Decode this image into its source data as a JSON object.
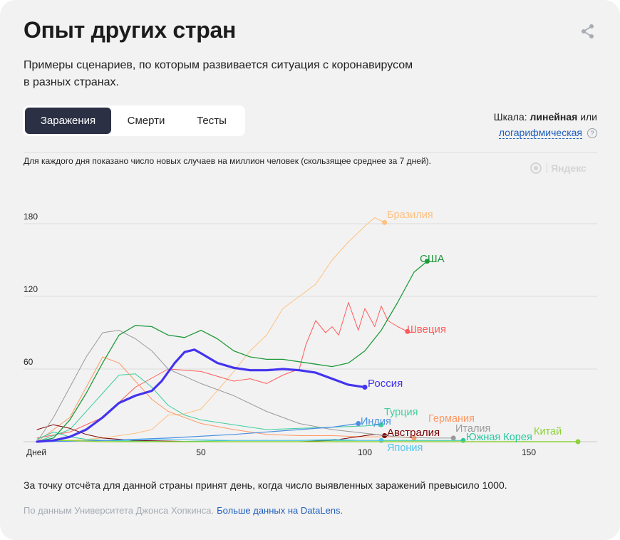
{
  "header": {
    "title": "Опыт других стран",
    "subtitle_line1": "Примеры сценариев, по которым развивается ситуация с коронавирусом",
    "subtitle_line2": "в разных странах."
  },
  "share_icon": "share-icon",
  "tabs": [
    {
      "label": "Заражения",
      "active": true
    },
    {
      "label": "Смерти",
      "active": false
    },
    {
      "label": "Тесты",
      "active": false
    }
  ],
  "scale": {
    "prefix": "Шкала:",
    "current": "линейная",
    "or": "или",
    "alt_link": "логарифмическая",
    "help": "?"
  },
  "note": "Для каждого дня показано число новых случаев на миллион человек (скользящее среднее за 7 дней).",
  "watermark": "Яндекс",
  "footnote": "За точку отсчёта для данной страны принят день, когда число выявленных заражений превысило 1000.",
  "source": {
    "text": "По данным Университета Джонса Хопкинса.",
    "link": "Больше данных на DataLens."
  },
  "colors": {
    "accent": "#2b3045",
    "link": "#1f5fbf",
    "russia": "#4433ee",
    "usa": "#1e9a3a",
    "brazil": "#ffc080",
    "sweden": "#ff5b5b",
    "india": "#4a90e2",
    "turkey": "#3ecf9c",
    "germany": "#ff9966",
    "australia": "#7a0000",
    "italy": "#9a9a9a",
    "south_korea": "#29c7a1",
    "china": "#8fd13a",
    "japan": "#56c5ee",
    "background": "#f2f2f2"
  },
  "chart_data": {
    "type": "line",
    "xlabel": "Дней",
    "ylabel": "",
    "xlim": [
      0,
      166
    ],
    "ylim": [
      0,
      190
    ],
    "xticks": [
      50,
      100,
      150
    ],
    "yticks": [
      60,
      120,
      180
    ],
    "grid": true,
    "legend": "inline-end-labels",
    "series": [
      {
        "name": "Бразилия",
        "color": "#ffc080",
        "width": 1,
        "points": [
          [
            0,
            0
          ],
          [
            10,
            1
          ],
          [
            20,
            3
          ],
          [
            30,
            7
          ],
          [
            35,
            10
          ],
          [
            40,
            22
          ],
          [
            45,
            23
          ],
          [
            50,
            27
          ],
          [
            55,
            42
          ],
          [
            60,
            58
          ],
          [
            65,
            75
          ],
          [
            70,
            88
          ],
          [
            75,
            110
          ],
          [
            80,
            120
          ],
          [
            85,
            130
          ],
          [
            90,
            150
          ],
          [
            95,
            165
          ],
          [
            100,
            178
          ],
          [
            103,
            185
          ],
          [
            106,
            181
          ]
        ]
      },
      {
        "name": "США",
        "color": "#1e9a3a",
        "width": 1.3,
        "points": [
          [
            0,
            0
          ],
          [
            5,
            3
          ],
          [
            10,
            18
          ],
          [
            15,
            40
          ],
          [
            20,
            65
          ],
          [
            25,
            88
          ],
          [
            30,
            96
          ],
          [
            35,
            95
          ],
          [
            40,
            88
          ],
          [
            45,
            86
          ],
          [
            50,
            92
          ],
          [
            55,
            85
          ],
          [
            60,
            75
          ],
          [
            65,
            70
          ],
          [
            70,
            68
          ],
          [
            75,
            68
          ],
          [
            80,
            66
          ],
          [
            85,
            64
          ],
          [
            90,
            62
          ],
          [
            95,
            65
          ],
          [
            100,
            75
          ],
          [
            105,
            92
          ],
          [
            110,
            115
          ],
          [
            115,
            140
          ],
          [
            119,
            149
          ]
        ]
      },
      {
        "name": "Швеция",
        "color": "#ff5b5b",
        "width": 1,
        "points": [
          [
            0,
            3
          ],
          [
            10,
            8
          ],
          [
            20,
            20
          ],
          [
            30,
            45
          ],
          [
            40,
            60
          ],
          [
            50,
            58
          ],
          [
            60,
            50
          ],
          [
            65,
            52
          ],
          [
            70,
            48
          ],
          [
            75,
            55
          ],
          [
            80,
            60
          ],
          [
            82,
            80
          ],
          [
            85,
            100
          ],
          [
            88,
            90
          ],
          [
            90,
            95
          ],
          [
            92,
            88
          ],
          [
            95,
            115
          ],
          [
            98,
            92
          ],
          [
            100,
            110
          ],
          [
            103,
            95
          ],
          [
            105,
            112
          ],
          [
            107,
            100
          ],
          [
            110,
            95
          ],
          [
            113,
            91
          ]
        ]
      },
      {
        "name": "Россия",
        "color": "#4433ee",
        "width": 3.2,
        "points": [
          [
            0,
            0
          ],
          [
            5,
            1
          ],
          [
            10,
            4
          ],
          [
            15,
            10
          ],
          [
            20,
            20
          ],
          [
            25,
            32
          ],
          [
            30,
            38
          ],
          [
            35,
            42
          ],
          [
            38,
            50
          ],
          [
            42,
            65
          ],
          [
            45,
            74
          ],
          [
            48,
            76
          ],
          [
            50,
            73
          ],
          [
            55,
            65
          ],
          [
            60,
            61
          ],
          [
            65,
            59
          ],
          [
            70,
            59
          ],
          [
            75,
            60
          ],
          [
            80,
            59
          ],
          [
            85,
            57
          ],
          [
            90,
            52
          ],
          [
            95,
            47
          ],
          [
            100,
            45
          ]
        ]
      },
      {
        "name": "Индия",
        "color": "#4a90e2",
        "width": 1.2,
        "points": [
          [
            0,
            0
          ],
          [
            20,
            1
          ],
          [
            40,
            3
          ],
          [
            60,
            6
          ],
          [
            80,
            10
          ],
          [
            90,
            12
          ],
          [
            98,
            15
          ]
        ]
      },
      {
        "name": "Турция",
        "color": "#3ecf9c",
        "width": 1,
        "points": [
          [
            0,
            0
          ],
          [
            10,
            10
          ],
          [
            20,
            40
          ],
          [
            25,
            55
          ],
          [
            30,
            56
          ],
          [
            35,
            45
          ],
          [
            40,
            30
          ],
          [
            45,
            22
          ],
          [
            50,
            18
          ],
          [
            60,
            14
          ],
          [
            70,
            10
          ],
          [
            80,
            11
          ],
          [
            90,
            12
          ],
          [
            100,
            13
          ],
          [
            105,
            14
          ]
        ]
      },
      {
        "name": "Германия",
        "color": "#ff9966",
        "width": 1,
        "points": [
          [
            0,
            0
          ],
          [
            10,
            20
          ],
          [
            15,
            45
          ],
          [
            20,
            70
          ],
          [
            25,
            65
          ],
          [
            30,
            50
          ],
          [
            35,
            35
          ],
          [
            40,
            25
          ],
          [
            50,
            15
          ],
          [
            60,
            10
          ],
          [
            70,
            6
          ],
          [
            80,
            5
          ],
          [
            90,
            5
          ],
          [
            100,
            4
          ],
          [
            110,
            4
          ],
          [
            115,
            3
          ]
        ]
      },
      {
        "name": "Австралия",
        "color": "#7a0000",
        "width": 1,
        "points": [
          [
            0,
            10
          ],
          [
            5,
            14
          ],
          [
            10,
            11
          ],
          [
            15,
            6
          ],
          [
            20,
            3
          ],
          [
            30,
            1
          ],
          [
            50,
            0
          ],
          [
            70,
            0
          ],
          [
            80,
            0
          ],
          [
            90,
            1
          ],
          [
            95,
            3
          ],
          [
            100,
            5
          ],
          [
            103,
            6
          ],
          [
            106,
            5
          ]
        ]
      },
      {
        "name": "Италия",
        "color": "#9a9a9a",
        "width": 1,
        "points": [
          [
            0,
            0
          ],
          [
            5,
            20
          ],
          [
            10,
            45
          ],
          [
            15,
            70
          ],
          [
            20,
            90
          ],
          [
            25,
            92
          ],
          [
            30,
            85
          ],
          [
            35,
            75
          ],
          [
            40,
            60
          ],
          [
            50,
            48
          ],
          [
            60,
            38
          ],
          [
            70,
            25
          ],
          [
            80,
            15
          ],
          [
            90,
            10
          ],
          [
            100,
            7
          ],
          [
            110,
            4
          ],
          [
            120,
            3
          ],
          [
            127,
            3
          ]
        ]
      },
      {
        "name": "Южная Корея",
        "color": "#29c7a1",
        "width": 1,
        "points": [
          [
            0,
            2
          ],
          [
            5,
            8
          ],
          [
            10,
            4
          ],
          [
            15,
            2
          ],
          [
            20,
            1
          ],
          [
            40,
            0
          ],
          [
            60,
            1
          ],
          [
            80,
            1
          ],
          [
            100,
            1
          ],
          [
            120,
            1
          ],
          [
            130,
            1
          ]
        ]
      },
      {
        "name": "Китай",
        "color": "#8fd13a",
        "width": 1.4,
        "points": [
          [
            0,
            0
          ],
          [
            5,
            1
          ],
          [
            10,
            1
          ],
          [
            20,
            0
          ],
          [
            40,
            0
          ],
          [
            60,
            0
          ],
          [
            80,
            0
          ],
          [
            100,
            0
          ],
          [
            120,
            0
          ],
          [
            140,
            0
          ],
          [
            155,
            0
          ],
          [
            165,
            0
          ]
        ]
      },
      {
        "name": "Япония",
        "color": "#56c5ee",
        "width": 1,
        "points": [
          [
            0,
            0
          ],
          [
            20,
            1
          ],
          [
            40,
            2
          ],
          [
            60,
            1
          ],
          [
            80,
            1
          ],
          [
            90,
            2
          ],
          [
            100,
            1
          ],
          [
            105,
            1
          ]
        ]
      }
    ]
  }
}
